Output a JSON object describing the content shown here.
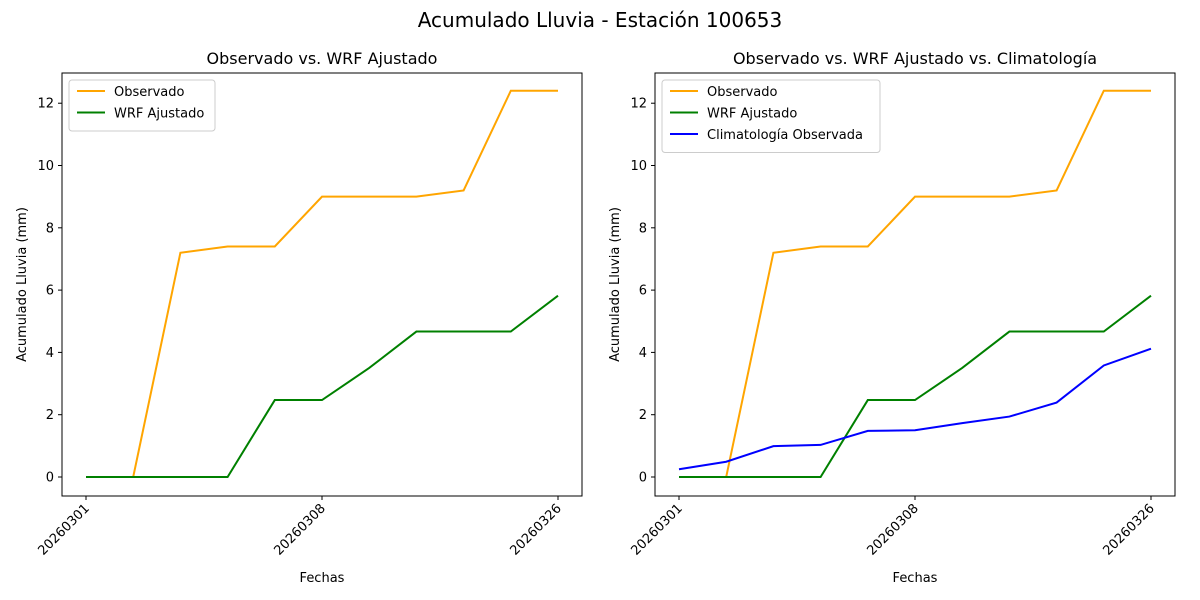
{
  "suptitle": "Acumulado Lluvia - Estación 100653",
  "chart_data": [
    {
      "type": "line",
      "title": "Observado vs. WRF Ajustado",
      "xlabel": "Fechas",
      "ylabel": "Acumulado Lluvia (mm)",
      "xtick_labels": [
        "20260301",
        "20260308",
        "20260326"
      ],
      "xtick_indices": [
        0,
        5,
        10
      ],
      "yticks": [
        0,
        2,
        4,
        6,
        8,
        10,
        12
      ],
      "ylim": [
        -0.61,
        12.97
      ],
      "legend": "top-left",
      "grid": false,
      "series": [
        {
          "name": "Observado",
          "color": "#ffa500",
          "values": [
            0,
            0,
            7.2,
            7.4,
            7.4,
            9.0,
            9.0,
            9.0,
            9.2,
            12.4,
            12.4
          ]
        },
        {
          "name": "WRF Ajustado",
          "color": "#008000",
          "values": [
            0,
            0,
            0,
            0,
            2.47,
            2.47,
            3.5,
            4.67,
            4.67,
            4.67,
            5.82
          ]
        }
      ]
    },
    {
      "type": "line",
      "title": "Observado vs. WRF Ajustado vs. Climatología",
      "xlabel": "Fechas",
      "ylabel": "Acumulado Lluvia (mm)",
      "xtick_labels": [
        "20260301",
        "20260308",
        "20260326"
      ],
      "xtick_indices": [
        0,
        5,
        10
      ],
      "yticks": [
        0,
        2,
        4,
        6,
        8,
        10,
        12
      ],
      "ylim": [
        -0.61,
        12.97
      ],
      "legend": "top-left",
      "grid": false,
      "series": [
        {
          "name": "Observado",
          "color": "#ffa500",
          "values": [
            0,
            0,
            7.2,
            7.4,
            7.4,
            9.0,
            9.0,
            9.0,
            9.2,
            12.4,
            12.4
          ]
        },
        {
          "name": "WRF Ajustado",
          "color": "#008000",
          "values": [
            0,
            0,
            0,
            0,
            2.47,
            2.47,
            3.5,
            4.67,
            4.67,
            4.67,
            5.82
          ]
        },
        {
          "name": "Climatología Observada",
          "color": "#0000ff",
          "values": [
            0.25,
            0.49,
            0.99,
            1.03,
            1.48,
            1.5,
            1.73,
            1.94,
            2.39,
            3.58,
            4.12
          ]
        }
      ]
    }
  ]
}
